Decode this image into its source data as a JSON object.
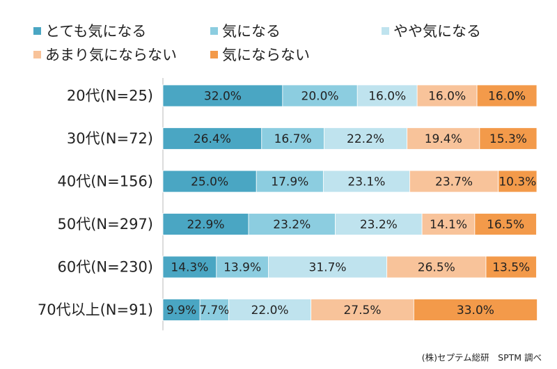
{
  "chart_data": {
    "type": "bar",
    "orientation": "horizontal",
    "stacked": "percent",
    "categories": [
      "20代(N=25)",
      "30代(N=72)",
      "40代(N=156)",
      "50代(N=297)",
      "60代(N=230)",
      "70代以上(N=91)"
    ],
    "series": [
      {
        "name": "とても気になる",
        "color": "#4aa6c3",
        "values": [
          32.0,
          26.4,
          25.0,
          22.9,
          14.3,
          9.9
        ]
      },
      {
        "name": "気になる",
        "color": "#8ccde0",
        "values": [
          20.0,
          16.7,
          17.9,
          23.2,
          13.9,
          7.7
        ]
      },
      {
        "name": "やや気になる",
        "color": "#bfe3ee",
        "values": [
          16.0,
          22.2,
          23.1,
          23.2,
          31.7,
          22.0
        ]
      },
      {
        "name": "あまり気にならない",
        "color": "#f8c39a",
        "values": [
          16.0,
          19.4,
          23.7,
          14.1,
          26.5,
          27.5
        ]
      },
      {
        "name": "気にならない",
        "color": "#f39a4a",
        "values": [
          16.0,
          15.3,
          10.3,
          16.5,
          13.5,
          33.0
        ]
      }
    ],
    "data_labels": [
      [
        "32.0%",
        "20.0%",
        "16.0%",
        "16.0%",
        "16.0%"
      ],
      [
        "26.4%",
        "16.7%",
        "22.2%",
        "19.4%",
        "15.3%"
      ],
      [
        "25.0%",
        "17.9%",
        "23.1%",
        "23.7%",
        "10.3%"
      ],
      [
        "22.9%",
        "23.2%",
        "23.2%",
        "14.1%",
        "16.5%"
      ],
      [
        "14.3%",
        "13.9%",
        "31.7%",
        "26.5%",
        "13.5%"
      ],
      [
        "9.9%",
        "7.7%",
        "22.0%",
        "27.5%",
        "33.0%"
      ]
    ],
    "xlim": [
      0,
      100
    ],
    "legend_position": "top"
  },
  "source_note": "(株)セプテム総研　SPTM 調べ"
}
